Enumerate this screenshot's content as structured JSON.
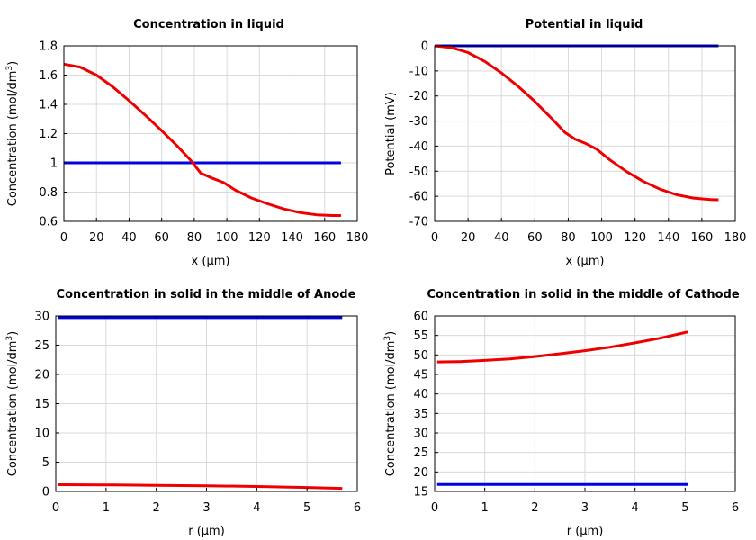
{
  "chart_data": [
    {
      "type": "line",
      "title": "Concentration in liquid",
      "xlabel": "x (µm)",
      "ylabel": "Concentration (mol/dm³)",
      "xlim": [
        0,
        180
      ],
      "ylim": [
        0.6,
        1.8
      ],
      "xticks": [
        0,
        20,
        40,
        60,
        80,
        100,
        120,
        140,
        160,
        180
      ],
      "yticks": [
        0.6,
        0.8,
        1,
        1.2,
        1.4,
        1.6,
        1.8
      ],
      "xtick_labels": [
        "0",
        "20",
        "40",
        "60",
        "80",
        "100",
        "120",
        "140",
        "160",
        "180"
      ],
      "ytick_labels": [
        "0.6",
        "0.8",
        "1",
        "1.2",
        "1.4",
        "1.6",
        "1.8"
      ],
      "grid": true,
      "series": [
        {
          "color": "#0000e0",
          "x": [
            0,
            170
          ],
          "y": [
            1.0,
            1.0
          ]
        },
        {
          "color": "#ee0000",
          "x": [
            0,
            10,
            20,
            30,
            40,
            50,
            60,
            70,
            78,
            84,
            90,
            98,
            105,
            115,
            125,
            135,
            145,
            155,
            165,
            170
          ],
          "y": [
            1.675,
            1.655,
            1.6,
            1.52,
            1.425,
            1.325,
            1.22,
            1.11,
            1.015,
            0.93,
            0.9,
            0.865,
            0.815,
            0.76,
            0.72,
            0.685,
            0.66,
            0.645,
            0.64,
            0.64
          ]
        }
      ]
    },
    {
      "type": "line",
      "title": "Potential in liquid",
      "xlabel": "x (µm)",
      "ylabel": "Potential (mV)",
      "xlim": [
        0,
        180
      ],
      "ylim": [
        -70,
        0
      ],
      "xticks": [
        0,
        20,
        40,
        60,
        80,
        100,
        120,
        140,
        160,
        180
      ],
      "yticks": [
        -70,
        -60,
        -50,
        -40,
        -30,
        -20,
        -10,
        0
      ],
      "xtick_labels": [
        "0",
        "20",
        "40",
        "60",
        "80",
        "100",
        "120",
        "140",
        "160",
        "180"
      ],
      "ytick_labels": [
        "-70",
        "-60",
        "-50",
        "-40",
        "-30",
        "-20",
        "-10",
        "0"
      ],
      "grid": true,
      "series": [
        {
          "color": "#0000e0",
          "x": [
            0,
            170
          ],
          "y": [
            0,
            0
          ]
        },
        {
          "color": "#ee0000",
          "x": [
            0,
            10,
            20,
            30,
            40,
            50,
            60,
            70,
            78,
            84,
            90,
            97,
            105,
            115,
            125,
            135,
            145,
            155,
            165,
            170
          ],
          "y": [
            0,
            -0.7,
            -2.7,
            -6.2,
            -10.8,
            -16.2,
            -22.2,
            -28.9,
            -34.5,
            -37.2,
            -38.8,
            -41.2,
            -45.5,
            -50.2,
            -54.1,
            -57.2,
            -59.4,
            -60.7,
            -61.3,
            -61.4
          ]
        }
      ]
    },
    {
      "type": "line",
      "title": "Concentration in solid in the middle of Anode",
      "xlabel": "r (µm)",
      "ylabel": "Concentration (mol/dm³)",
      "xlim": [
        0,
        6
      ],
      "ylim": [
        0,
        30
      ],
      "xticks": [
        0,
        1,
        2,
        3,
        4,
        5,
        6
      ],
      "yticks": [
        0,
        5,
        10,
        15,
        20,
        25,
        30
      ],
      "xtick_labels": [
        "0",
        "1",
        "2",
        "3",
        "4",
        "5",
        "6"
      ],
      "ytick_labels": [
        "0",
        "5",
        "10",
        "15",
        "20",
        "25",
        "30"
      ],
      "grid": true,
      "series": [
        {
          "color": "#0000e0",
          "x": [
            0.05,
            5.7
          ],
          "y": [
            29.7,
            29.7
          ]
        },
        {
          "color": "#ee0000",
          "x": [
            0.05,
            1,
            2,
            3,
            4,
            5,
            5.7
          ],
          "y": [
            1.15,
            1.12,
            1.05,
            0.97,
            0.85,
            0.68,
            0.52
          ]
        }
      ]
    },
    {
      "type": "line",
      "title": "Concentration in solid in the middle of Cathode",
      "xlabel": "r (µm)",
      "ylabel": "Concentration (mol/dm³)",
      "xlim": [
        0,
        6
      ],
      "ylim": [
        15,
        60
      ],
      "xticks": [
        0,
        1,
        2,
        3,
        4,
        5,
        6
      ],
      "yticks": [
        15,
        20,
        25,
        30,
        35,
        40,
        45,
        50,
        55,
        60
      ],
      "xtick_labels": [
        "0",
        "1",
        "2",
        "3",
        "4",
        "5",
        "6"
      ],
      "ytick_labels": [
        "15",
        "20",
        "25",
        "30",
        "35",
        "40",
        "45",
        "50",
        "55",
        "60"
      ],
      "grid": true,
      "series": [
        {
          "color": "#0000e0",
          "x": [
            0.05,
            5.05
          ],
          "y": [
            16.8,
            16.8
          ]
        },
        {
          "color": "#ee0000",
          "x": [
            0.05,
            0.5,
            1,
            1.5,
            2,
            2.5,
            3,
            3.5,
            4,
            4.5,
            5.05
          ],
          "y": [
            48.2,
            48.3,
            48.6,
            49.0,
            49.6,
            50.3,
            51.1,
            52.0,
            53.1,
            54.3,
            55.9
          ]
        }
      ]
    }
  ]
}
